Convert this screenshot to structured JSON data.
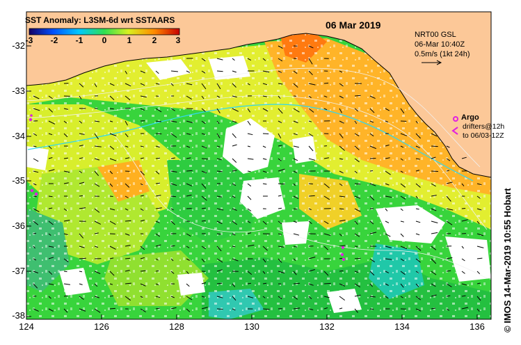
{
  "header": {
    "title": "SST Anomaly: L3SM-6d wrt SSTAARS",
    "date": "06 Mar 2019"
  },
  "colorbar": {
    "ticks": [
      "-3",
      "-2",
      "-1",
      "0",
      "1",
      "2",
      "3"
    ],
    "colors": [
      "#140064",
      "#0050ff",
      "#00c8ff",
      "#30e050",
      "#d8f020",
      "#ff8c00",
      "#c80000"
    ]
  },
  "info_box": {
    "line1": "NRT00 GSL",
    "line2": "06-Mar 10:40Z",
    "line3": "0.5m/s (1kt 24h)"
  },
  "legend": {
    "argo": "Argo",
    "drifters_line1": "drifters@12h",
    "drifters_line2": "to 06/03-12Z"
  },
  "axes": {
    "y_ticks": [
      "-32",
      "-33",
      "-34",
      "-35",
      "-36",
      "-37",
      "-38"
    ],
    "x_ticks": [
      "124",
      "126",
      "128",
      "130",
      "132",
      "134",
      "136"
    ]
  },
  "credit": "© IMOS 14-Mar-2019 10:55 Hobart",
  "colors": {
    "land": "#fcc898",
    "ocean_green": "#2fd43a",
    "ocean_yellow": "#e8f030",
    "ocean_orange": "#ffa020",
    "argo": "#e020e0"
  }
}
